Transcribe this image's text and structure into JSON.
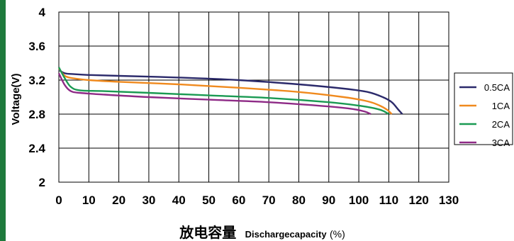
{
  "chart_data": {
    "type": "line",
    "title": "",
    "xlabel": {
      "chinese": "放电容量",
      "english": "Dischargecapacity",
      "unit": "(%)"
    },
    "ylabel": "Voltage(V)",
    "xlim": [
      0,
      130
    ],
    "ylim": [
      2,
      4
    ],
    "xticks": [
      "0",
      "10",
      "20",
      "30",
      "40",
      "50",
      "60",
      "70",
      "80",
      "90",
      "100",
      "110",
      "120",
      "130"
    ],
    "yticks": [
      "4",
      "3.6",
      "3.2",
      "2.8",
      "2.4",
      "2"
    ],
    "grid": true,
    "legend_position": "right",
    "series": [
      {
        "name": "0.5CA",
        "color": "#2b2a6b",
        "x": [
          0,
          2,
          5,
          10,
          20,
          40,
          60,
          80,
          95,
          103,
          108,
          111,
          113,
          114.5
        ],
        "y": [
          3.32,
          3.28,
          3.27,
          3.26,
          3.25,
          3.23,
          3.2,
          3.15,
          3.1,
          3.06,
          3.0,
          2.94,
          2.86,
          2.8
        ]
      },
      {
        "name": "1CA",
        "color": "#f08a1e",
        "x": [
          0,
          2,
          5,
          10,
          20,
          40,
          60,
          80,
          95,
          103,
          107,
          109.5,
          111
        ],
        "y": [
          3.34,
          3.25,
          3.22,
          3.2,
          3.18,
          3.15,
          3.11,
          3.06,
          3.0,
          2.95,
          2.9,
          2.85,
          2.8
        ]
      },
      {
        "name": "2CA",
        "color": "#1a9a52",
        "x": [
          0,
          2,
          4,
          7,
          15,
          30,
          50,
          70,
          90,
          100,
          105,
          108,
          110
        ],
        "y": [
          3.35,
          3.22,
          3.12,
          3.08,
          3.07,
          3.05,
          3.02,
          2.99,
          2.94,
          2.9,
          2.87,
          2.84,
          2.8
        ]
      },
      {
        "name": "3CA",
        "color": "#8e2a86",
        "x": [
          0,
          2,
          4,
          7,
          15,
          30,
          50,
          70,
          90,
          98,
          102,
          104
        ],
        "y": [
          3.28,
          3.14,
          3.07,
          3.05,
          3.03,
          3.0,
          2.97,
          2.94,
          2.89,
          2.86,
          2.83,
          2.8
        ]
      }
    ]
  },
  "colors": {
    "edge_bar": "#1e7a3c",
    "grid": "#000000"
  }
}
